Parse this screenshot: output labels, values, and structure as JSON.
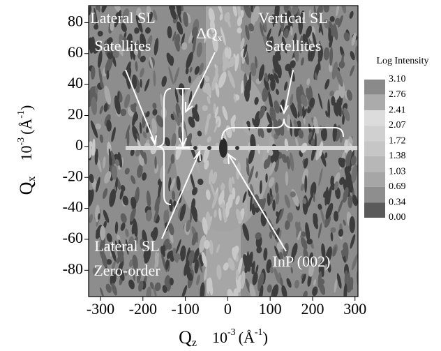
{
  "chart_data": {
    "type": "contour",
    "xlabel": {
      "main": "Q",
      "sub": "z",
      "unit": "10",
      "unit_exp": "-3",
      "paren": "(Å",
      "paren_exp": "-1",
      "close": ")"
    },
    "ylabel": {
      "main": "Q",
      "sub": "x",
      "unit": "10",
      "unit_exp": "-3",
      "paren": "(Å",
      "paren_exp": "-1",
      "close": ")"
    },
    "xlim": [
      -328,
      307
    ],
    "xticks": [
      -300,
      -200,
      -100,
      0,
      100,
      200,
      300
    ],
    "ylim": [
      -97,
      91
    ],
    "yticks": [
      -80,
      -60,
      -40,
      -20,
      0,
      20,
      40,
      60,
      80
    ],
    "colorbar": {
      "label": "Log Intensity",
      "levels": [
        {
          "value": 3.1,
          "label": "3.10"
        },
        2.76,
        2.41,
        2.07,
        1.72,
        1.38,
        1.03,
        0.69,
        0.34,
        {
          "value": 0,
          "label": "0.00"
        }
      ],
      "colors": [
        "#8a8a8a",
        "#ababab",
        "#dcdcdc",
        "#d0d0d0",
        "#c6c6c6",
        "#b7b7b7",
        "#a6a6a6",
        "#8e8e8e",
        "#5a5a5a"
      ]
    },
    "annotations": [
      {
        "lines": [
          "Lateral SL",
          "Satellites"
        ]
      },
      {
        "text": "ΔQ",
        "sub": "x"
      },
      {
        "lines": [
          "Vertical SL",
          "Satellites"
        ]
      },
      {
        "lines": [
          "Lateral SL",
          "Zero-order"
        ]
      },
      {
        "lines": [
          "InP (002)"
        ]
      }
    ]
  }
}
